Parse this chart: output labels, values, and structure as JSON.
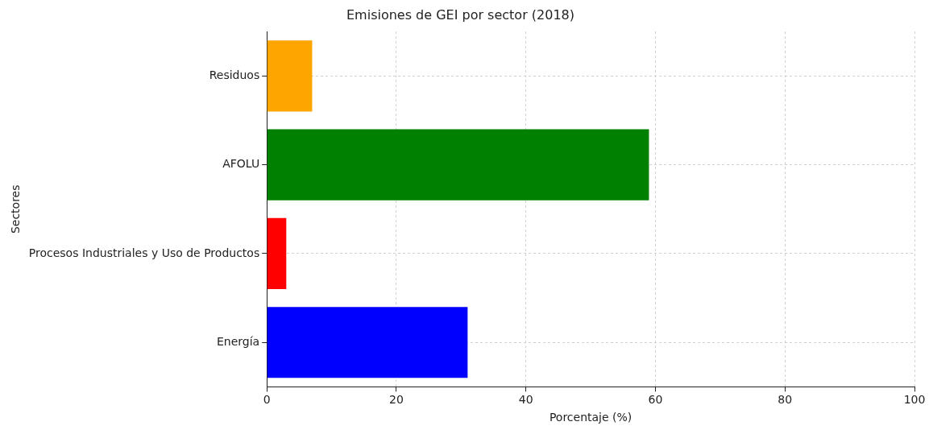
{
  "chart_data": {
    "type": "bar",
    "orientation": "horizontal",
    "title": "Emisiones de GEI por sector (2018)",
    "xlabel": "Porcentaje (%)",
    "ylabel": "Sectores",
    "categories": [
      "Residuos",
      "AFOLU",
      "Procesos Industriales y Uso de Productos",
      "Energía"
    ],
    "values": [
      7,
      59,
      3,
      31
    ],
    "colors": [
      "#ffa500",
      "#008000",
      "#ff0000",
      "#0000ff"
    ],
    "xlim": [
      0,
      100
    ],
    "xticks": [
      0,
      20,
      40,
      60,
      80,
      100
    ],
    "grid": true
  }
}
